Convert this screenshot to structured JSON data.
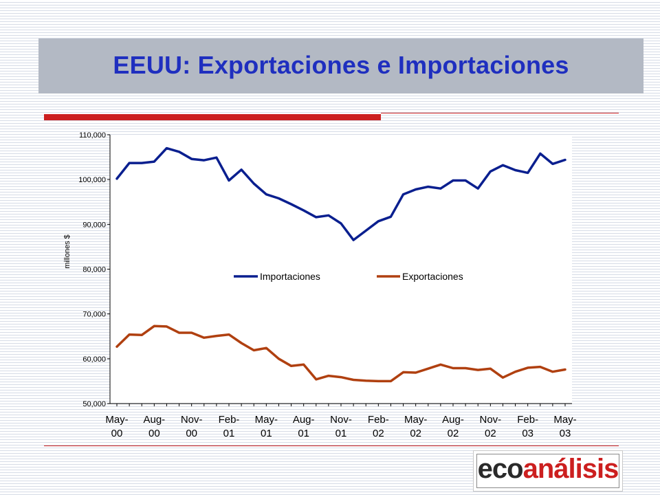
{
  "slide": {
    "title": "EEUU: Exportaciones e Importaciones",
    "logo": {
      "part1": "eco",
      "part2": "análisis"
    },
    "colors": {
      "title": "#1f2fbf",
      "title_bar": "#b3b9c4",
      "accent": "#cc1f1f"
    }
  },
  "chart_data": {
    "type": "line",
    "title": "",
    "ylabel": "millones $",
    "xlabel": "",
    "ylim": [
      50000,
      110000
    ],
    "yticks": [
      "50,000",
      "60,000",
      "70,000",
      "80,000",
      "90,000",
      "100,000",
      "110,000"
    ],
    "x_tick_labels": [
      [
        "May-",
        "00"
      ],
      [
        "Aug-",
        "00"
      ],
      [
        "Nov-",
        "00"
      ],
      [
        "Feb-",
        "01"
      ],
      [
        "May-",
        "01"
      ],
      [
        "Aug-",
        "01"
      ],
      [
        "Nov-",
        "01"
      ],
      [
        "Feb-",
        "02"
      ],
      [
        "May-",
        "02"
      ],
      [
        "Aug-",
        "02"
      ],
      [
        "Nov-",
        "02"
      ],
      [
        "Feb-",
        "03"
      ],
      [
        "May-",
        "03"
      ]
    ],
    "x": [
      "May-00",
      "Jun-00",
      "Jul-00",
      "Aug-00",
      "Sep-00",
      "Oct-00",
      "Nov-00",
      "Dec-00",
      "Jan-01",
      "Feb-01",
      "Mar-01",
      "Apr-01",
      "May-01",
      "Jun-01",
      "Jul-01",
      "Aug-01",
      "Sep-01",
      "Oct-01",
      "Nov-01",
      "Dec-01",
      "Jan-02",
      "Feb-02",
      "Mar-02",
      "Apr-02",
      "May-02",
      "Jun-02",
      "Jul-02",
      "Aug-02",
      "Sep-02",
      "Oct-02",
      "Nov-02",
      "Dec-02",
      "Jan-03",
      "Feb-03",
      "Mar-03",
      "Apr-03",
      "May-03"
    ],
    "legend_position": "center",
    "grid": false,
    "series": [
      {
        "name": "Importaciones",
        "color": "#0a1f8f",
        "values": [
          100200,
          103700,
          103700,
          104000,
          107000,
          106200,
          104600,
          104300,
          104900,
          99800,
          102200,
          99100,
          96700,
          95800,
          94500,
          93100,
          91600,
          92000,
          90200,
          86500,
          88600,
          90700,
          91700,
          96700,
          97800,
          98400,
          98000,
          99800,
          99800,
          98000,
          101800,
          103200,
          102100,
          101500,
          105800,
          103500,
          104400
        ]
      },
      {
        "name": "Exportaciones",
        "color": "#b04010",
        "values": [
          62700,
          65400,
          65300,
          67300,
          67200,
          65800,
          65800,
          64700,
          65100,
          65400,
          63500,
          61900,
          62400,
          60000,
          58400,
          58700,
          55400,
          56200,
          55900,
          55300,
          55100,
          55000,
          55000,
          57000,
          56900,
          57800,
          58700,
          57900,
          57900,
          57500,
          57800,
          55800,
          57100,
          58000,
          58200,
          57100,
          57600
        ]
      }
    ]
  }
}
